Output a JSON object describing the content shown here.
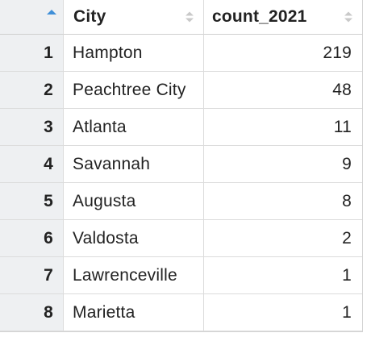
{
  "table": {
    "columns": {
      "city": "City",
      "count": "count_2021"
    },
    "sort": {
      "column": "row-index",
      "direction": "ascending",
      "active_color": "#3f8fd8",
      "inactive_color": "#c9c9c9"
    },
    "rows": [
      {
        "index": "1",
        "city": "Hampton",
        "count": "219"
      },
      {
        "index": "2",
        "city": "Peachtree City",
        "count": "48"
      },
      {
        "index": "3",
        "city": "Atlanta",
        "count": "11"
      },
      {
        "index": "4",
        "city": "Savannah",
        "count": "9"
      },
      {
        "index": "5",
        "city": "Augusta",
        "count": "8"
      },
      {
        "index": "6",
        "city": "Valdosta",
        "count": "2"
      },
      {
        "index": "7",
        "city": "Lawrenceville",
        "count": "1"
      },
      {
        "index": "8",
        "city": "Marietta",
        "count": "1"
      }
    ]
  }
}
